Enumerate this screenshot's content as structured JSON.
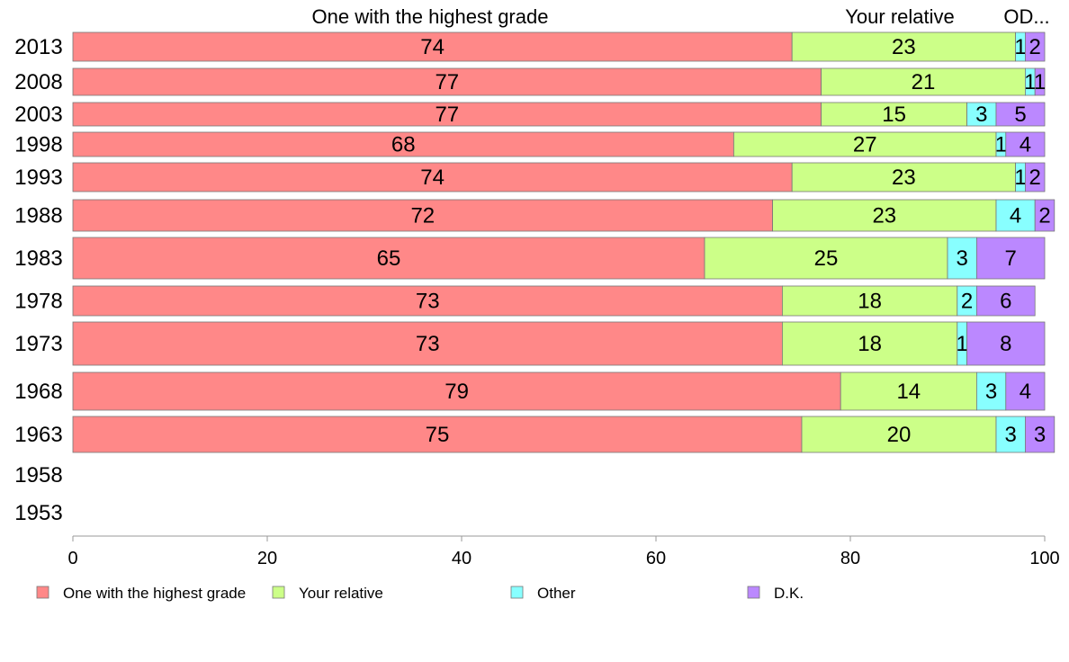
{
  "chart_data": {
    "type": "bar",
    "orientation": "horizontal",
    "stacked": true,
    "categories": [
      "2013",
      "2008",
      "2003",
      "1998",
      "1993",
      "1988",
      "1983",
      "1978",
      "1973",
      "1968",
      "1963",
      "1958",
      "1953"
    ],
    "series": [
      {
        "name": "One with the highest grade",
        "color": "#ff8888",
        "values": [
          74,
          77,
          77,
          68,
          74,
          72,
          65,
          73,
          73,
          79,
          75,
          null,
          null
        ]
      },
      {
        "name": "Your relative",
        "color": "#ccff88",
        "values": [
          23,
          21,
          15,
          27,
          23,
          23,
          25,
          18,
          18,
          14,
          20,
          null,
          null
        ]
      },
      {
        "name": "Other",
        "color": "#88ffff",
        "values": [
          1,
          1,
          3,
          1,
          1,
          4,
          3,
          2,
          1,
          3,
          3,
          null,
          null
        ]
      },
      {
        "name": "D.K.",
        "color": "#bb88ff",
        "values": [
          2,
          1,
          5,
          4,
          2,
          2,
          7,
          6,
          8,
          4,
          3,
          null,
          null
        ]
      }
    ],
    "top_labels": [
      "One with the highest grade",
      "Your relative",
      "OD..."
    ],
    "xlim": [
      0,
      100
    ],
    "xticks": [
      "0",
      "20",
      "40",
      "60",
      "80",
      "100"
    ],
    "grid": false,
    "legend_position": "bottom"
  }
}
